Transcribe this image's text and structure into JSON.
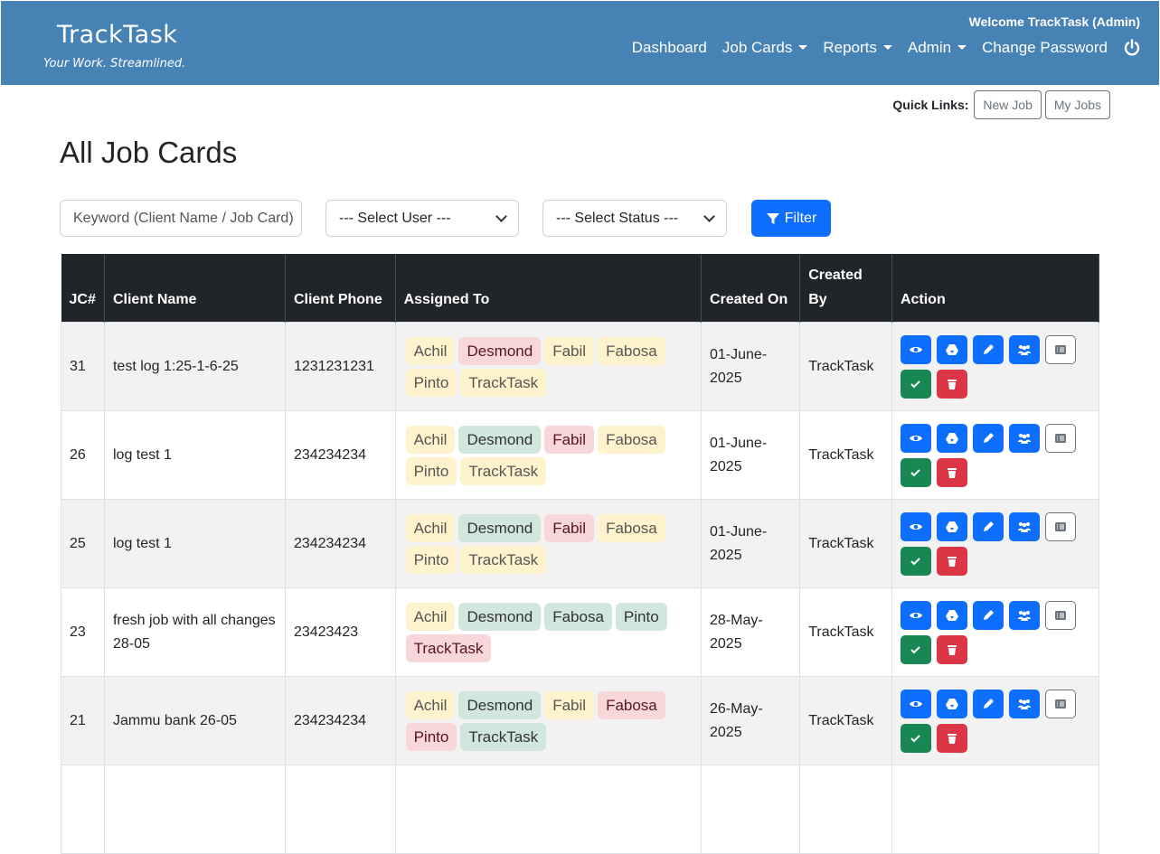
{
  "brand": {
    "name": "TrackTask",
    "tagline": "Your Work. Streamlined."
  },
  "header": {
    "welcome": "Welcome TrackTask (Admin)",
    "menu": [
      {
        "label": "Dashboard",
        "dropdown": false
      },
      {
        "label": "Job Cards",
        "dropdown": true
      },
      {
        "label": "Reports",
        "dropdown": true
      },
      {
        "label": "Admin",
        "dropdown": true
      },
      {
        "label": "Change Password",
        "dropdown": false
      }
    ],
    "logout_icon": "power-icon",
    "color": "#4682b4"
  },
  "quick_links": {
    "label": "Quick Links:",
    "items": [
      "New Job",
      "My Jobs"
    ]
  },
  "page_title": "All Job Cards",
  "filters": {
    "keyword_placeholder": "Keyword (Client Name / Job Card)",
    "user_select": "--- Select User ---",
    "status_select": "--- Select Status ---",
    "filter_label": "Filter"
  },
  "table": {
    "columns": [
      "JC#",
      "Client Name",
      "Client Phone",
      "Assigned To",
      "Created On",
      "Created By",
      "Action"
    ],
    "rows": [
      {
        "jc": "31",
        "client": "test log 1:25-1-6-25",
        "phone": "1231231231",
        "assigned": [
          [
            "Achil",
            "y"
          ],
          [
            "Desmond",
            "r"
          ],
          [
            "Fabil",
            "y"
          ],
          [
            "Fabosa",
            "y"
          ],
          [
            "Pinto",
            "y"
          ],
          [
            "TrackTask",
            "y"
          ]
        ],
        "created_on": "01-June-2025",
        "created_by": "TrackTask"
      },
      {
        "jc": "26",
        "client": "log test 1",
        "phone": "234234234",
        "assigned": [
          [
            "Achil",
            "y"
          ],
          [
            "Desmond",
            "g"
          ],
          [
            "Fabil",
            "r"
          ],
          [
            "Fabosa",
            "y"
          ],
          [
            "Pinto",
            "y"
          ],
          [
            "TrackTask",
            "y"
          ]
        ],
        "created_on": "01-June-2025",
        "created_by": "TrackTask"
      },
      {
        "jc": "25",
        "client": "log test 1",
        "phone": "234234234",
        "assigned": [
          [
            "Achil",
            "y"
          ],
          [
            "Desmond",
            "g"
          ],
          [
            "Fabil",
            "r"
          ],
          [
            "Fabosa",
            "y"
          ],
          [
            "Pinto",
            "y"
          ],
          [
            "TrackTask",
            "y"
          ]
        ],
        "created_on": "01-June-2025",
        "created_by": "TrackTask"
      },
      {
        "jc": "23",
        "client": "fresh job with all changes 28-05",
        "phone": "23423423",
        "assigned": [
          [
            "Achil",
            "y"
          ],
          [
            "Desmond",
            "g"
          ],
          [
            "Fabosa",
            "g"
          ],
          [
            "Pinto",
            "g"
          ],
          [
            "TrackTask",
            "r"
          ]
        ],
        "created_on": "28-May-2025",
        "created_by": "TrackTask"
      },
      {
        "jc": "21",
        "client": "Jammu bank 26-05",
        "phone": "234234234",
        "assigned": [
          [
            "Achil",
            "y"
          ],
          [
            "Desmond",
            "g"
          ],
          [
            "Fabil",
            "y"
          ],
          [
            "Fabosa",
            "r"
          ],
          [
            "Pinto",
            "r"
          ],
          [
            "TrackTask",
            "g"
          ]
        ],
        "created_on": "26-May-2025",
        "created_by": "TrackTask"
      }
    ],
    "actions": [
      "eye-icon",
      "drive-icon",
      "pencil-icon",
      "users-icon",
      "list-icon",
      "check-icon",
      "trash-icon"
    ]
  },
  "status_colors": {
    "y": "#fff3cd",
    "r": "#f8d7da",
    "g": "#d1e7dd"
  }
}
